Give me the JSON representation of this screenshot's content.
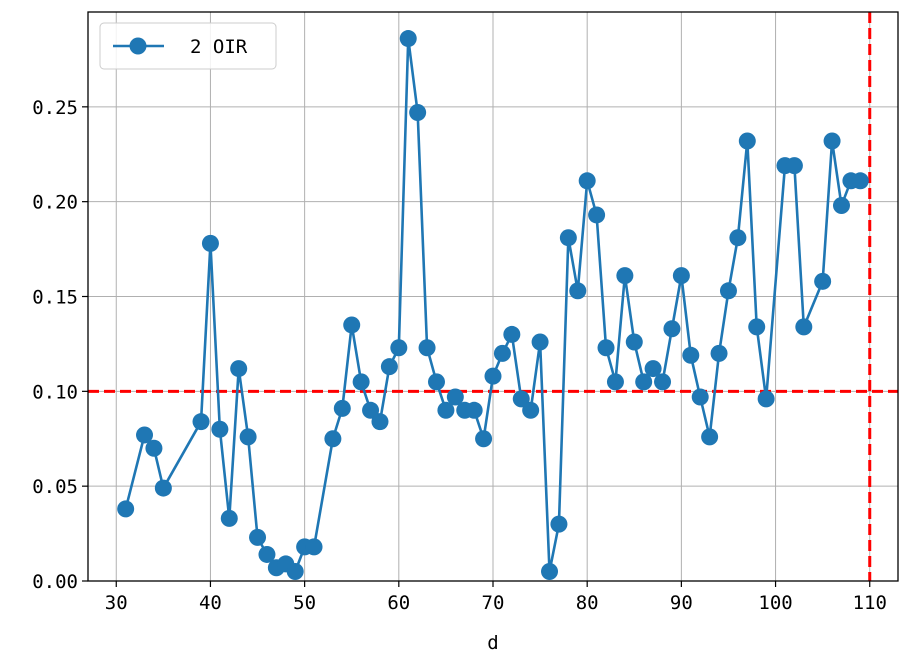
{
  "chart_data": {
    "type": "line",
    "title": "",
    "xlabel": "d",
    "ylabel": "",
    "xlim": [
      27,
      113
    ],
    "ylim": [
      0,
      0.3
    ],
    "grid": true,
    "legend_position": "top-left",
    "x_ticks": [
      30,
      40,
      50,
      60,
      70,
      80,
      90,
      100,
      110
    ],
    "x_tick_labels": [
      "30",
      "40",
      "50",
      "60",
      "70",
      "80",
      "90",
      "100",
      "110"
    ],
    "y_ticks": [
      0,
      0.05,
      0.1,
      0.15,
      0.2,
      0.25
    ],
    "y_tick_labels": [
      "0.00",
      "0.05",
      "0.10",
      "0.15",
      "0.20",
      "0.25"
    ],
    "series": [
      {
        "name": "2 OIR",
        "color": "#1f77b4",
        "marker": "circle",
        "points": [
          [
            31,
            0.038
          ],
          [
            33,
            0.077
          ],
          [
            34,
            0.07
          ],
          [
            35,
            0.049
          ],
          [
            39,
            0.084
          ],
          [
            40,
            0.178
          ],
          [
            41,
            0.08
          ],
          [
            42,
            0.033
          ],
          [
            43,
            0.112
          ],
          [
            44,
            0.076
          ],
          [
            45,
            0.023
          ],
          [
            46,
            0.014
          ],
          [
            47,
            0.007
          ],
          [
            48,
            0.009
          ],
          [
            49,
            0.005
          ],
          [
            50,
            0.018
          ],
          [
            51,
            0.018
          ],
          [
            53,
            0.075
          ],
          [
            54,
            0.091
          ],
          [
            55,
            0.135
          ],
          [
            56,
            0.105
          ],
          [
            57,
            0.09
          ],
          [
            58,
            0.084
          ],
          [
            59,
            0.113
          ],
          [
            60,
            0.123
          ],
          [
            61,
            0.286
          ],
          [
            62,
            0.247
          ],
          [
            63,
            0.123
          ],
          [
            64,
            0.105
          ],
          [
            65,
            0.09
          ],
          [
            66,
            0.097
          ],
          [
            67,
            0.09
          ],
          [
            68,
            0.09
          ],
          [
            69,
            0.075
          ],
          [
            70,
            0.108
          ],
          [
            71,
            0.12
          ],
          [
            72,
            0.13
          ],
          [
            73,
            0.096
          ],
          [
            74,
            0.09
          ],
          [
            75,
            0.126
          ],
          [
            76,
            0.005
          ],
          [
            77,
            0.03
          ],
          [
            78,
            0.181
          ],
          [
            79,
            0.153
          ],
          [
            80,
            0.211
          ],
          [
            81,
            0.193
          ],
          [
            82,
            0.123
          ],
          [
            83,
            0.105
          ],
          [
            84,
            0.161
          ],
          [
            85,
            0.126
          ],
          [
            86,
            0.105
          ],
          [
            87,
            0.112
          ],
          [
            88,
            0.105
          ],
          [
            89,
            0.133
          ],
          [
            90,
            0.161
          ],
          [
            91,
            0.119
          ],
          [
            92,
            0.097
          ],
          [
            93,
            0.076
          ],
          [
            94,
            0.12
          ],
          [
            95,
            0.153
          ],
          [
            96,
            0.181
          ],
          [
            97,
            0.232
          ],
          [
            98,
            0.134
          ],
          [
            99,
            0.096
          ],
          [
            101,
            0.219
          ],
          [
            102,
            0.219
          ],
          [
            103,
            0.134
          ],
          [
            105,
            0.158
          ],
          [
            106,
            0.232
          ],
          [
            107,
            0.198
          ],
          [
            108,
            0.211
          ],
          [
            109,
            0.211
          ]
        ]
      }
    ],
    "reference_lines": [
      {
        "orientation": "horizontal",
        "value": 0.1,
        "color": "#ff0000",
        "style": "dashed"
      },
      {
        "orientation": "vertical",
        "value": 110,
        "color": "#ff0000",
        "style": "dashed"
      }
    ]
  }
}
